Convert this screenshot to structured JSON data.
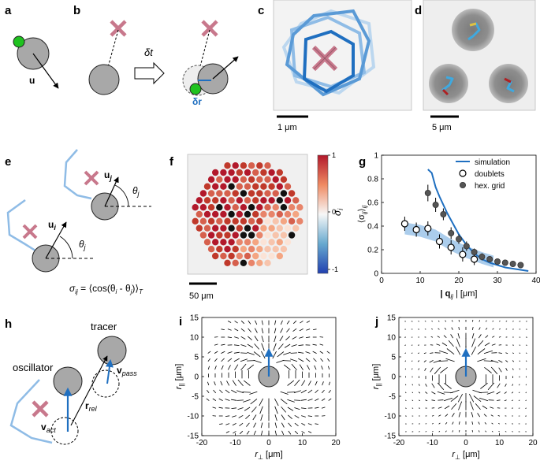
{
  "panels": {
    "a": {
      "label": "a",
      "vector": "u"
    },
    "b": {
      "label": "b",
      "dt": "δt",
      "dr": "δr"
    },
    "c": {
      "label": "c",
      "scale": "1 μm"
    },
    "d": {
      "label": "d",
      "scale": "5 μm"
    },
    "e": {
      "label": "e",
      "u_j": "u",
      "u_i": "u",
      "sub_j": "j",
      "sub_i": "i",
      "theta_j": "θ",
      "theta_i": "θ",
      "formula": "σ",
      "formula_sub": "ij",
      "formula_rhs": " = ⟨cos(θ",
      "formula_i": "i",
      "formula_mid": " - θ",
      "formula_j": "j",
      "formula_end": ")⟩",
      "formula_T": "T"
    },
    "f": {
      "label": "f",
      "scale": "50 μm",
      "cbar_label": "σ",
      "cbar_sub": "i"
    },
    "g": {
      "label": "g"
    },
    "h": {
      "label": "h",
      "tracer": "tracer",
      "oscillator": "oscillator",
      "v_pass": "v",
      "v_pass_sub": "pass",
      "r_rel": "r",
      "r_rel_sub": "rel",
      "v_act": "v",
      "v_act_sub": "act"
    },
    "i": {
      "label": "i"
    },
    "j": {
      "label": "j"
    }
  },
  "colors": {
    "pink": "#c8788c",
    "blue": "#1f6fc0",
    "lightblue": "#8fbce6",
    "green": "#1fc21f",
    "grey": "#a8a8a8"
  },
  "chart_data": [
    {
      "type": "colorbar",
      "panel": "f",
      "ticks": [
        "1",
        "0",
        "-1"
      ],
      "range": [
        -1,
        1
      ]
    },
    {
      "type": "line",
      "panel": "g",
      "xlim": [
        0,
        40
      ],
      "ylim": [
        0,
        1
      ],
      "xticks": [
        "0",
        "10",
        "20",
        "30",
        "40"
      ],
      "yticks": [
        "0",
        "0.2",
        "0.4",
        "0.6",
        "0.8",
        "1"
      ],
      "xlabel": "| q",
      "xlabel_sub": "ij",
      "xlabel_unit": " | [μm]",
      "ylabel": "⟨σ",
      "ylabel_sub": "ij",
      "ylabel_end": "⟩",
      "ylabel_outer_sub": "ij",
      "legend_position": "top-right",
      "series": [
        {
          "name": "simulation",
          "style": "line",
          "x": [
            12,
            13,
            14,
            15,
            16,
            17,
            18,
            20,
            22,
            24,
            26,
            28,
            30,
            32,
            34,
            36,
            38
          ],
          "y": [
            0.88,
            0.85,
            0.73,
            0.65,
            0.58,
            0.51,
            0.45,
            0.33,
            0.24,
            0.17,
            0.12,
            0.09,
            0.07,
            0.05,
            0.04,
            0.03,
            0.02
          ]
        },
        {
          "name": "doublets",
          "style": "open-circle",
          "x": [
            6,
            9,
            12,
            15,
            18,
            21,
            24
          ],
          "y": [
            0.42,
            0.37,
            0.38,
            0.27,
            0.22,
            0.16,
            0.12
          ],
          "err": [
            0.06,
            0.06,
            0.06,
            0.06,
            0.06,
            0.06,
            0.05
          ]
        },
        {
          "name": "hex. grid",
          "style": "filled-circle",
          "x": [
            12,
            14,
            16,
            18,
            20,
            22,
            24,
            26,
            28,
            30,
            32,
            34,
            36
          ],
          "y": [
            0.68,
            0.58,
            0.5,
            0.34,
            0.29,
            0.23,
            0.18,
            0.14,
            0.12,
            0.1,
            0.09,
            0.08,
            0.07
          ],
          "err": [
            0.07,
            0.06,
            0.05,
            0.05,
            0.04,
            0.04,
            0.03,
            0.03,
            0.02,
            0.02,
            0.02,
            0.02,
            0.02
          ]
        },
        {
          "name": "",
          "style": "band",
          "x": [
            6,
            10,
            14,
            18,
            22,
            26,
            29
          ],
          "y": [
            0.38,
            0.36,
            0.32,
            0.24,
            0.18,
            0.13,
            0.1
          ]
        }
      ]
    },
    {
      "type": "quiver",
      "panel": "i",
      "xlim": [
        -20,
        20
      ],
      "ylim": [
        -15,
        15
      ],
      "xticks": [
        "-20",
        "-10",
        "0",
        "10",
        "20"
      ],
      "yticks": [
        "-15",
        "-10",
        "-5",
        "0",
        "5",
        "10",
        "15"
      ],
      "xlabel": "r",
      "xlabel_sub": "⊥",
      "xlabel_unit": " [μm]",
      "ylabel": "r",
      "ylabel_sub": "||",
      "ylabel_unit": " [μm]",
      "field": "dipole-radial"
    },
    {
      "type": "quiver",
      "panel": "j",
      "xlim": [
        -20,
        20
      ],
      "ylim": [
        -15,
        15
      ],
      "xticks": [
        "-20",
        "-10",
        "0",
        "10",
        "20"
      ],
      "yticks": [
        "-15",
        "-10",
        "-5",
        "0",
        "5",
        "10",
        "15"
      ],
      "xlabel": "r",
      "xlabel_sub": "⊥",
      "xlabel_unit": " [μm]",
      "ylabel": "r",
      "ylabel_sub": "||",
      "ylabel_unit": " [μm]",
      "field": "dipole-decaying"
    }
  ]
}
